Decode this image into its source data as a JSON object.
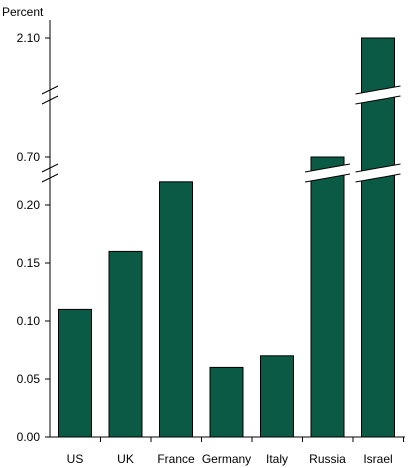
{
  "chart_data": {
    "type": "bar",
    "title": "",
    "ylabel": "Percent",
    "xlabel": "",
    "categories": [
      "US",
      "UK",
      "France",
      "Germany",
      "Italy",
      "Russia",
      "Israel"
    ],
    "values": [
      0.11,
      0.16,
      0.22,
      0.06,
      0.07,
      0.7,
      2.1
    ],
    "ylim": [
      0,
      2.1
    ],
    "y_axis_breaks": [
      [
        0.22,
        0.7
      ],
      [
        0.7,
        2.1
      ]
    ],
    "y_ticks": [
      "0.00",
      "0.05",
      "0.10",
      "0.15",
      "0.20",
      "0.70",
      "2.10"
    ],
    "bar_color": "#0a5a45",
    "grid": false,
    "legend": "none"
  }
}
